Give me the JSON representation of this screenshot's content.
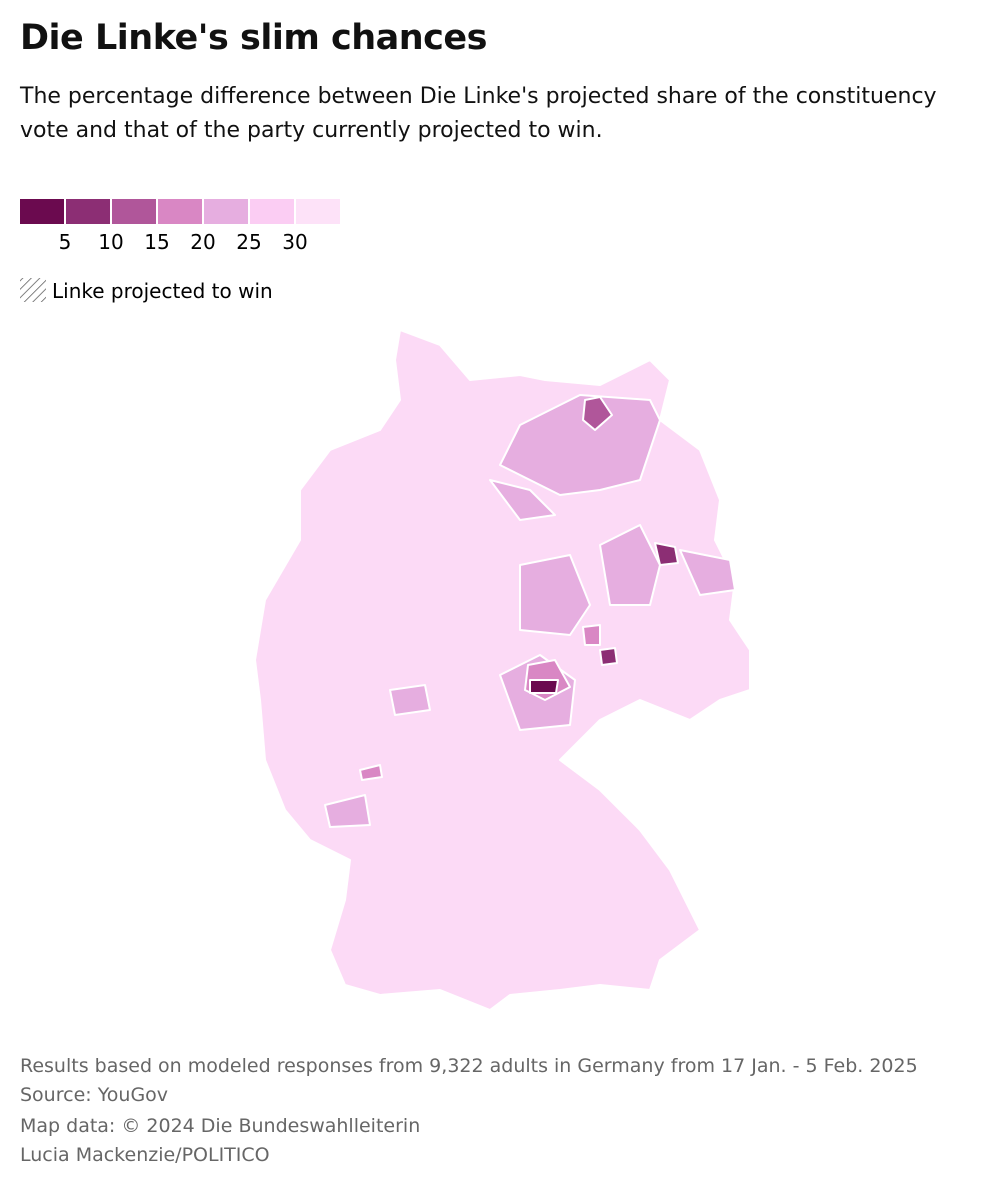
{
  "header": {
    "title": "Die Linke's slim chances",
    "subtitle": "The percentage difference between Die Linke's projected share of the constituency vote and that of the party currently projected to win."
  },
  "legend": {
    "colors": [
      "#6b0a4f",
      "#8c2e74",
      "#b0569a",
      "#d987c4",
      "#e6aee0",
      "#fbcdf3",
      "#fde2f8"
    ],
    "ticks": [
      5,
      10,
      15,
      20,
      25,
      30
    ],
    "hatch_label": "Linke projected to win"
  },
  "footer": {
    "lines": [
      "Results based on modeled responses from 9,322 adults in Germany from 17 Jan. - 5 Feb. 2025",
      "Source: YouGov",
      "Map data: © 2024 Die Bundeswahlleiterin",
      "Lucia Mackenzie/POLITICO"
    ]
  }
}
